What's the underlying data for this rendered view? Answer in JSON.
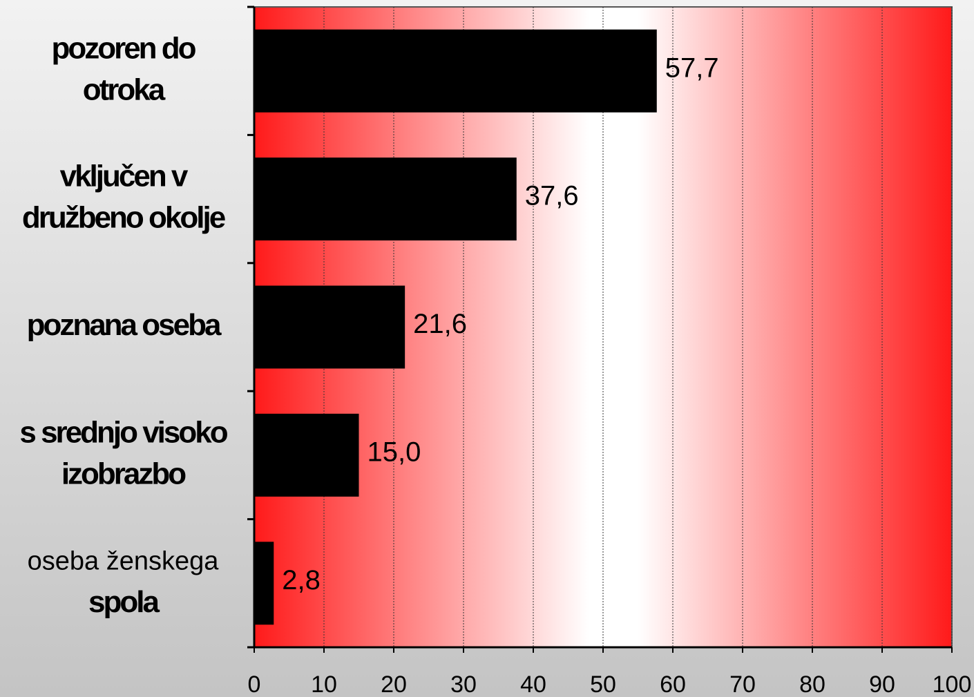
{
  "chart_data": {
    "type": "bar",
    "orientation": "horizontal",
    "categories": [
      [
        "pozoren do",
        "otroka"
      ],
      [
        "vključen v",
        "družbeno okolje"
      ],
      [
        "poznana oseba"
      ],
      [
        "s srednjo visoko",
        "izobrazbo"
      ],
      [
        "oseba ženskega",
        "spola"
      ]
    ],
    "values": [
      57.7,
      37.6,
      21.6,
      15.0,
      2.8
    ],
    "value_labels": [
      "57,7",
      "37,6",
      "21,6",
      "15,0",
      "2,8"
    ],
    "color": "#000000",
    "xlim": [
      0,
      100
    ],
    "xticks": [
      0,
      10,
      20,
      30,
      40,
      50,
      60,
      70,
      80,
      90,
      100
    ],
    "grid": true
  }
}
